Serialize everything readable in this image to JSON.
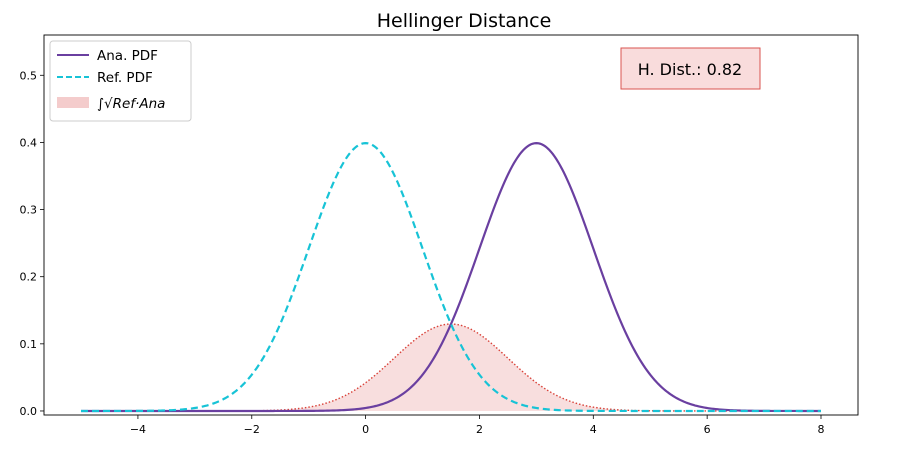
{
  "chart_data": {
    "type": "line",
    "title": "Hellinger Distance",
    "xlabel": "",
    "ylabel": "",
    "xlim": [
      -5.65,
      8.65
    ],
    "ylim": [
      -0.006,
      0.56
    ],
    "xticks": [
      -4,
      -2,
      0,
      2,
      4,
      6,
      8
    ],
    "xtick_labels": [
      "−4",
      "−2",
      "0",
      "2",
      "4",
      "6",
      "8"
    ],
    "yticks": [
      0.0,
      0.1,
      0.2,
      0.3,
      0.4,
      0.5
    ],
    "ytick_labels": [
      "0.0",
      "0.1",
      "0.2",
      "0.3",
      "0.4",
      "0.5"
    ],
    "x_range": [
      -5,
      8
    ],
    "grid": false,
    "legend_position": "top-left",
    "series": [
      {
        "name": "Ana. PDF",
        "kind": "normal_pdf",
        "mean": 3,
        "std": 1,
        "color": "#6a3fa0",
        "style": "solid",
        "peak": [
          [
            3,
            0.399
          ]
        ]
      },
      {
        "name": "Ref. PDF",
        "kind": "normal_pdf",
        "mean": 0,
        "std": 1,
        "color": "#17c3d6",
        "style": "dashed",
        "peak": [
          [
            0,
            0.399
          ]
        ]
      },
      {
        "name": "∫√Ref·Ana",
        "kind": "sqrt_product_fill",
        "color": "#f4cccc",
        "edge_color": "#d9433a",
        "peak": [
          [
            1.5,
            0.1295
          ]
        ]
      }
    ],
    "annotation": {
      "text": "H. Dist.: 0.82",
      "value": 0.82,
      "fill": "#f9dcdc",
      "edge": "#d9534f"
    }
  }
}
